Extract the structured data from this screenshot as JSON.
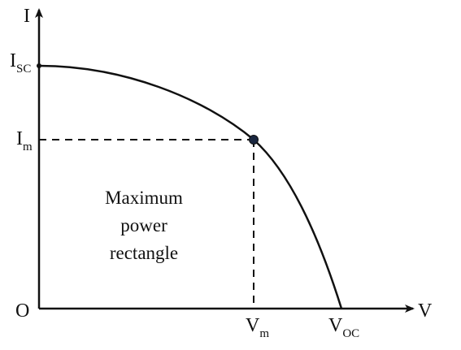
{
  "axes": {
    "y_label": "I",
    "x_label": "V",
    "origin_label": "O"
  },
  "points": {
    "short_circuit_current": {
      "main": "I",
      "sub": "SC"
    },
    "max_power_current": {
      "main": "I",
      "sub": "m"
    },
    "max_power_voltage": {
      "main": "V",
      "sub": "m"
    },
    "open_circuit_voltage": {
      "main": "V",
      "sub": "OC"
    }
  },
  "rectangle_label": [
    "Maximum",
    "power",
    "rectangle"
  ]
}
